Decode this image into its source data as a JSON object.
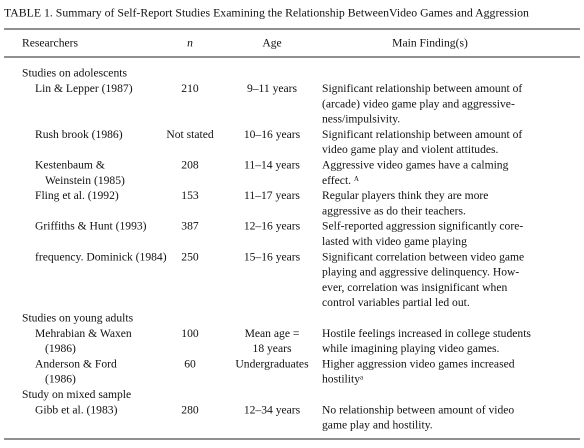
{
  "table": {
    "title": "TABLE 1. Summary of Self-Report Studies Examining the Relationship BetweenVideo Games and Aggression",
    "header": [
      "Researchers",
      "n",
      "Age",
      "Main Finding(s)"
    ],
    "sections": [
      {
        "label": "Studies on adolescents",
        "rows": [
          {
            "researchers": [
              "Lin & Lepper (1987)"
            ],
            "n": 210,
            "age": [
              "9–11 years"
            ],
            "finding": [
              "Significant relationship between amount of",
              "(arcade) video game play and aggressive-",
              "ness/impulsivity."
            ]
          },
          {
            "researchers": [
              "Rush brook (1986)"
            ],
            "n": "Not stated",
            "age": [
              "10–16 years"
            ],
            "finding": [
              "Significant relationship between amount of",
              "video game play and violent attitudes."
            ]
          },
          {
            "researchers": [
              "Kestenbaum &",
              "Weinstein (1985)"
            ],
            "n": 208,
            "age": [
              "11–14 years"
            ],
            "finding": [
              "Aggressive video games have a calming",
              "effect. ᴬ"
            ]
          },
          {
            "researchers": [
              "Fling et al. (1992)"
            ],
            "n": 153,
            "age": [
              "11–17 years"
            ],
            "finding": [
              "Regular players think they are more",
              "aggressive as do their teachers."
            ]
          },
          {
            "researchers": [
              "Griffiths & Hunt (1993)"
            ],
            "n": 387,
            "age": [
              "12–16 years"
            ],
            "finding": [
              "Self-reported aggression significantly core-",
              "lasted with video game playing"
            ]
          },
          {
            "researchers": [
              "frequency. Dominick (1984)"
            ],
            "n": 250,
            "age": [
              "15–16 years"
            ],
            "finding": [
              "Significant correlation between video game",
              "playing and aggressive delinquency. How-",
              "ever, correlation was insignificant when",
              "control variables partial led out."
            ]
          }
        ]
      },
      {
        "label": "Studies on young adults",
        "rows": [
          {
            "researchers": [
              "Mehrabian & Waxen",
              "(1986)"
            ],
            "n": 100,
            "age": [
              "Mean age =",
              "18 years"
            ],
            "finding": [
              "Hostile feelings increased in college students",
              "while imagining playing video games."
            ]
          },
          {
            "researchers": [
              "Anderson & Ford",
              "(1986)"
            ],
            "n": 60,
            "age": [
              "Undergraduates"
            ],
            "finding": [
              "Higher aggression video games increased",
              "hostilityᵃ"
            ]
          }
        ]
      },
      {
        "label": "Study on mixed sample",
        "rows": [
          {
            "researchers": [
              "Gibb et al. (1983)"
            ],
            "n": 280,
            "age": [
              "12–34 years"
            ],
            "finding": [
              "No relationship between amount of video",
              "game play and hostility."
            ]
          }
        ]
      }
    ]
  }
}
